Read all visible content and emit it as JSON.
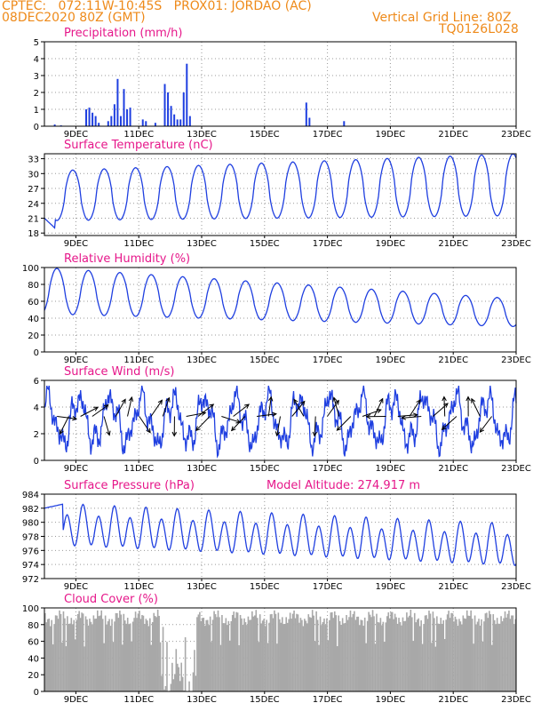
{
  "header": {
    "line1_left": "CPTEC:   072:11W-10:45S   PROX01: JORDAO (AC)",
    "line2_left": "08DEC2020 80Z (GMT)",
    "line2_right": "Vertical Grid Line: 80Z",
    "line3_right": "TQ0126L028"
  },
  "x_axis": {
    "start_day": 8,
    "end_day": 23,
    "ticks": [
      {
        "day": 9,
        "label": "9DEC"
      },
      {
        "day": 11,
        "label": "11DEC"
      },
      {
        "day": 13,
        "label": "13DEC"
      },
      {
        "day": 15,
        "label": "15DEC"
      },
      {
        "day": 17,
        "label": "17DEC"
      },
      {
        "day": 19,
        "label": "19DEC"
      },
      {
        "day": 21,
        "label": "21DEC"
      },
      {
        "day": 23,
        "label": "23DEC"
      }
    ]
  },
  "colors": {
    "line": "#1f3fe0",
    "bar": "#1f3fe0",
    "cloud": "#a8a8a8",
    "grid": "#999999",
    "title": "#e6178a",
    "header": "#ee8a1a"
  },
  "chart_data": [
    {
      "id": "precip",
      "type": "bar",
      "title": "Precipitation (mm/h)",
      "ylim": [
        0,
        5
      ],
      "yticks": [
        0,
        1,
        2,
        3,
        4,
        5
      ],
      "points": [
        [
          8.3,
          0.1
        ],
        [
          8.5,
          0.05
        ],
        [
          9.3,
          1.0
        ],
        [
          9.4,
          1.1
        ],
        [
          9.5,
          0.8
        ],
        [
          9.6,
          0.6
        ],
        [
          9.7,
          0.2
        ],
        [
          10.0,
          0.3
        ],
        [
          10.1,
          0.6
        ],
        [
          10.2,
          1.3
        ],
        [
          10.3,
          2.8
        ],
        [
          10.4,
          0.6
        ],
        [
          10.5,
          2.2
        ],
        [
          10.6,
          1.0
        ],
        [
          10.7,
          1.1
        ],
        [
          11.1,
          0.4
        ],
        [
          11.2,
          0.3
        ],
        [
          11.5,
          0.2
        ],
        [
          11.8,
          2.5
        ],
        [
          11.9,
          2.0
        ],
        [
          12.0,
          1.2
        ],
        [
          12.1,
          0.7
        ],
        [
          12.2,
          0.4
        ],
        [
          12.3,
          0.4
        ],
        [
          12.4,
          2.0
        ],
        [
          12.5,
          3.7
        ],
        [
          12.6,
          0.6
        ],
        [
          16.3,
          1.4
        ],
        [
          16.4,
          0.5
        ],
        [
          17.5,
          0.3
        ]
      ]
    },
    {
      "id": "temp",
      "type": "line",
      "title": "Surface Temperature (nC)",
      "ylim": [
        17.5,
        34
      ],
      "yticks": [
        18,
        21,
        24,
        27,
        30,
        33
      ],
      "min_start": 20.5,
      "min_end": 21.5,
      "max_start": 30.5,
      "max_end": 34,
      "phase": 0.65
    },
    {
      "id": "rh",
      "type": "line",
      "title": "Relative Humidity (%)",
      "ylim": [
        0,
        100
      ],
      "yticks": [
        0,
        20,
        40,
        60,
        80,
        100
      ],
      "min_start": 45,
      "min_end": 30,
      "max_start": 100,
      "max_end": 63,
      "phase": 0.15
    },
    {
      "id": "wind",
      "type": "line",
      "title": "Surface Wind (m/s)",
      "ylim": [
        0,
        6
      ],
      "yticks": [
        0,
        2,
        4,
        6
      ],
      "mean": 3.0,
      "amp": 1.6,
      "arrows": 38
    },
    {
      "id": "pres",
      "type": "line",
      "title": "Surface Pressure (hPa)",
      "annotation": "Model Altitude: 274.917 m",
      "ylim": [
        972,
        984
      ],
      "yticks": [
        972,
        974,
        976,
        978,
        980,
        982,
        984
      ],
      "mean_start": 979.5,
      "mean_end": 976.5,
      "amp": 2.5
    },
    {
      "id": "cloud",
      "type": "bar",
      "title": "Cloud Cover (%)",
      "ylim": [
        0,
        100
      ],
      "yticks": [
        0,
        20,
        40,
        60,
        80,
        100
      ],
      "clear_window": [
        11.7,
        12.8
      ],
      "base_level": 88
    }
  ]
}
